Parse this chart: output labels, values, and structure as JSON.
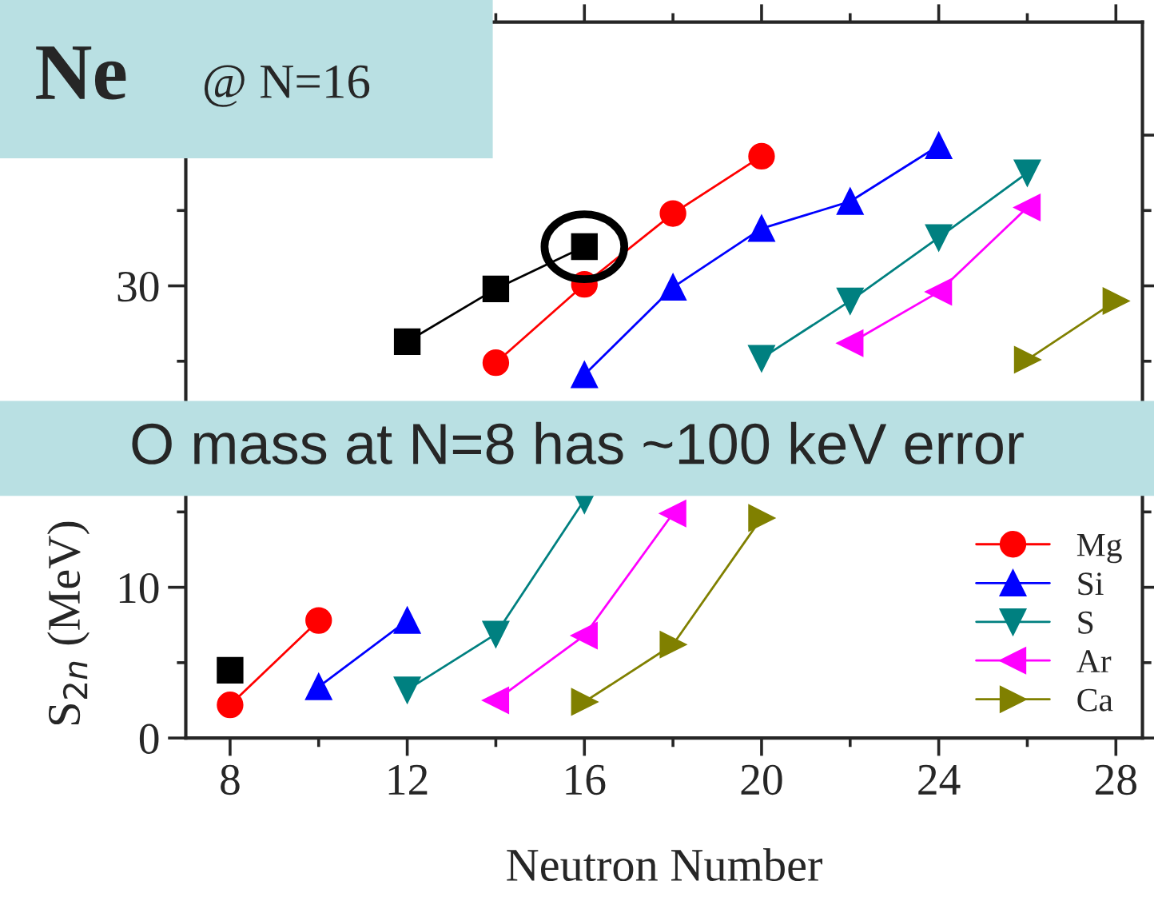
{
  "chart_data": {
    "type": "line",
    "title": "Ne",
    "subtitle": "@ N=16",
    "xlabel": "Neutron Number",
    "ylabel": "S$_{2n}$ (MeV)",
    "annotations": [
      "O mass at N=8 has ~100 keV error"
    ],
    "x": [
      8,
      10,
      12,
      14,
      16,
      18,
      20,
      22,
      24,
      26,
      28
    ],
    "series": [
      {
        "color": "#000000",
        "marker": "square",
        "values": [
          4.5,
          null,
          26.3,
          29.8,
          32.6,
          null,
          null,
          null,
          null,
          null,
          null
        ]
      },
      {
        "name": "Mg",
        "color": "#ff0000",
        "marker": "circle",
        "values": [
          2.2,
          7.8,
          null,
          24.9,
          30.1,
          34.8,
          38.6,
          null,
          null,
          null,
          null
        ]
      },
      {
        "name": "Si",
        "color": "#0000ff",
        "marker": "triangle",
        "values": [
          null,
          3.4,
          7.8,
          null,
          24.1,
          29.9,
          33.8,
          35.6,
          39.3,
          null,
          null
        ]
      },
      {
        "name": "S",
        "color": "#008080",
        "marker": "triangle-down",
        "values": [
          null,
          null,
          3.2,
          6.9,
          15.8,
          null,
          25.2,
          29.0,
          33.2,
          37.5,
          null
        ]
      },
      {
        "name": "Ar",
        "color": "#ff00ff",
        "marker": "triangle-left",
        "values": [
          null,
          null,
          null,
          2.5,
          6.8,
          14.9,
          null,
          26.2,
          29.6,
          35.2,
          null
        ]
      },
      {
        "name": "Ca",
        "color": "#808000",
        "marker": "triangle-right",
        "values": [
          null,
          null,
          null,
          null,
          2.4,
          6.2,
          14.6,
          null,
          null,
          25.1,
          29.0
        ]
      }
    ],
    "xlim": [
      7,
      28.6
    ],
    "ylim": [
      0,
      47.5
    ],
    "xticks": [
      8,
      12,
      16,
      20,
      24,
      28
    ],
    "yticks": [
      0,
      10,
      {
        "value": 20,
        "label": null
      },
      30,
      {
        "value": 40,
        "label": null
      }
    ],
    "legend": "bottom right",
    "grid": false
  }
}
